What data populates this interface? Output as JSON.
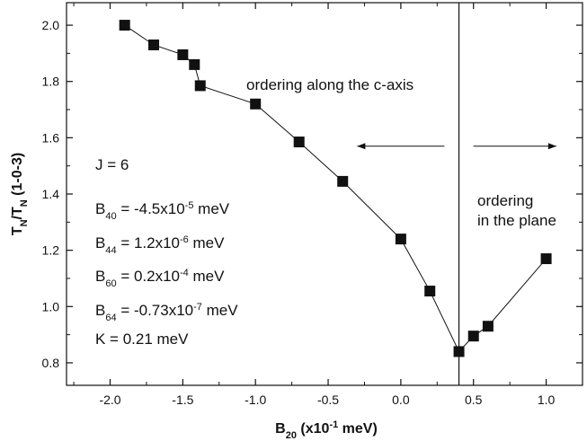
{
  "chart_data": {
    "type": "scatter",
    "xlabel": {
      "main": "B",
      "sub": "20",
      "rest": " (x10",
      "sup": "-1",
      "end": " meV)"
    },
    "ylabel": {
      "a": "T",
      "a_sub": "N",
      "slash": "/T",
      "b_sub": "N",
      "rest": " (1-0-3)"
    },
    "xlim": [
      -2.3,
      1.25
    ],
    "ylim": [
      0.72,
      2.08
    ],
    "xticks": [
      -2.0,
      -1.5,
      -1.0,
      -0.5,
      0.0,
      0.5,
      1.0
    ],
    "xtick_labels": [
      "-2.0",
      "-1.5",
      "-1.0",
      "-0.5",
      "0.0",
      "0.5",
      "1.0"
    ],
    "yticks": [
      0.8,
      1.0,
      1.2,
      1.4,
      1.6,
      1.8,
      2.0
    ],
    "ytick_labels": [
      "0.8",
      "1.0",
      "1.2",
      "1.4",
      "1.6",
      "1.8",
      "2.0"
    ],
    "series": [
      {
        "marker": "square",
        "color": "#111111",
        "x": [
          -1.9,
          -1.7,
          -1.5,
          -1.42,
          -1.38,
          -1.0,
          -0.7,
          -0.4,
          0.0,
          0.2,
          0.4,
          0.5,
          0.6,
          1.0
        ],
        "y": [
          2.0,
          1.93,
          1.895,
          1.86,
          1.785,
          1.72,
          1.585,
          1.445,
          1.24,
          1.055,
          0.84,
          0.895,
          0.93,
          1.17
        ]
      }
    ],
    "vertical_line_x": 0.4,
    "annotations": {
      "left_region": "ordering along the c-axis",
      "right_region_line1": "ordering",
      "right_region_line2": "in the plane"
    },
    "arrows": [
      {
        "direction": "left",
        "x_from": 0.3,
        "x_to": -0.3,
        "y": 1.57
      },
      {
        "direction": "right",
        "x_from": 0.5,
        "x_to": 1.07,
        "y": 1.57
      }
    ],
    "parameters": [
      {
        "base": "J = 6",
        "sub": "",
        "pre": "",
        "sup": "",
        "post": ""
      },
      {
        "base": "B",
        "sub": "40",
        "pre": " = -4.5x10",
        "sup": "-5",
        "post": " meV"
      },
      {
        "base": "B",
        "sub": "44",
        "pre": " = 1.2x10",
        "sup": "-6",
        "post": " meV"
      },
      {
        "base": "B",
        "sub": "60",
        "pre": " = 0.2x10",
        "sup": "-4",
        "post": " meV"
      },
      {
        "base": "B",
        "sub": "64",
        "pre": " = -0.73x10",
        "sup": "-7",
        "post": " meV"
      },
      {
        "base": "K = 0.21 meV",
        "sub": "",
        "pre": "",
        "sup": "",
        "post": ""
      }
    ],
    "grid": false,
    "legend": "none"
  }
}
